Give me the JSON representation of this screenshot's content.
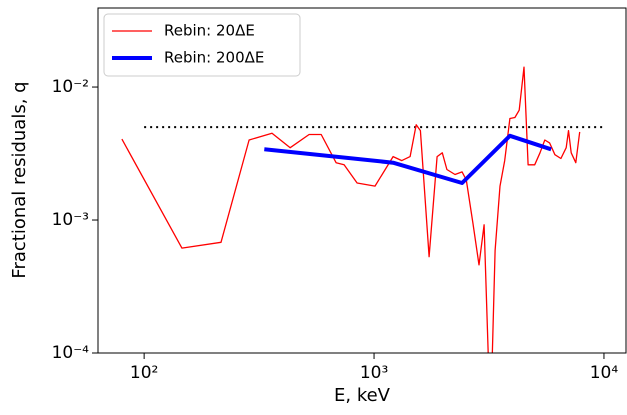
{
  "chart_data": {
    "type": "line",
    "xlabel": "E, keV",
    "ylabel": "Fractional residuals, q",
    "xscale": "log",
    "yscale": "log",
    "xlim": [
      63,
      12470
    ],
    "ylim": [
      0.0001,
      0.0393
    ],
    "xticks": [
      {
        "value": 100,
        "label": "10²"
      },
      {
        "value": 1000,
        "label": "10³"
      },
      {
        "value": 10000,
        "label": "10⁴"
      }
    ],
    "yticks": [
      {
        "value": 0.0001,
        "label": "10⁻⁴"
      },
      {
        "value": 0.001,
        "label": "10⁻³"
      },
      {
        "value": 0.01,
        "label": "10⁻²"
      }
    ],
    "legend": "upper left",
    "reference_line": {
      "y": 0.005,
      "x": [
        100,
        10000
      ],
      "color": "#000000"
    },
    "series": [
      {
        "name": "Rebin: 20ΔE",
        "color": "#ff0000",
        "width": 1.3,
        "x": [
          80,
          146,
          216,
          286,
          360,
          432,
          522,
          589,
          684,
          741,
          844,
          1010,
          1210,
          1320,
          1435,
          1525,
          1590,
          1735,
          1880,
          1980,
          2075,
          2250,
          2415,
          2520,
          2690,
          2860,
          3010,
          3150,
          3260,
          3360,
          3530,
          3700,
          3900,
          4100,
          4280,
          4490,
          4680,
          5000,
          5270,
          5530,
          5800,
          6120,
          6500,
          6850,
          7010,
          7200,
          7540,
          7840
        ],
        "values": [
          0.00406,
          0.000615,
          0.00068,
          0.004,
          0.0045,
          0.0035,
          0.0044,
          0.0044,
          0.0027,
          0.0026,
          0.0019,
          0.0018,
          0.003,
          0.0028,
          0.003,
          0.0052,
          0.0047,
          0.00053,
          0.003,
          0.0032,
          0.0024,
          0.0022,
          0.0023,
          0.002,
          0.00095,
          0.00046,
          0.00092,
          8e-05,
          8e-05,
          0.00059,
          0.0018,
          0.0028,
          0.0058,
          0.0059,
          0.0067,
          0.0141,
          0.0026,
          0.0026,
          0.0032,
          0.004,
          0.0038,
          0.0031,
          0.0029,
          0.0035,
          0.0047,
          0.0032,
          0.0027,
          0.0046
        ]
      },
      {
        "name": "Rebin: 200ΔE",
        "color": "#0000ff",
        "width": 4,
        "x": [
          333,
          1210,
          2415,
          3900,
          5890
        ],
        "values": [
          0.0034,
          0.0027,
          0.0019,
          0.0043,
          0.0034
        ]
      }
    ]
  }
}
